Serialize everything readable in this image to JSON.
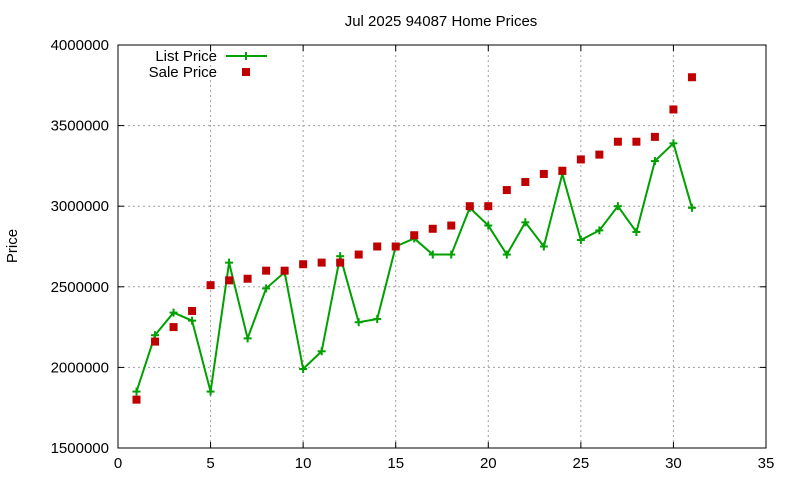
{
  "chart_data": {
    "type": "line",
    "title": "Jul 2025 94087 Home Prices",
    "xlabel": "",
    "ylabel": "Price",
    "xlim": [
      0,
      35
    ],
    "ylim": [
      1500000,
      4000000
    ],
    "xticks": [
      0,
      5,
      10,
      15,
      20,
      25,
      30,
      35
    ],
    "yticks": [
      1500000,
      2000000,
      2500000,
      3000000,
      3500000,
      4000000
    ],
    "grid": true,
    "legend_position": "top-left",
    "series": [
      {
        "name": "List Price",
        "style": "line+cross",
        "color": "#00a000",
        "x": [
          1,
          2,
          3,
          4,
          5,
          6,
          7,
          8,
          9,
          10,
          11,
          12,
          13,
          14,
          15,
          16,
          17,
          18,
          19,
          20,
          21,
          22,
          23,
          24,
          25,
          26,
          27,
          28,
          29,
          30,
          31
        ],
        "y": [
          1850000,
          2200000,
          2340000,
          2290000,
          1850000,
          2650000,
          2180000,
          2490000,
          2590000,
          1990000,
          2100000,
          2690000,
          2280000,
          2300000,
          2750000,
          2800000,
          2700000,
          2700000,
          2990000,
          2880000,
          2700000,
          2900000,
          2750000,
          3200000,
          2790000,
          2850000,
          3000000,
          2840000,
          3280000,
          3390000,
          2990000
        ]
      },
      {
        "name": "Sale Price",
        "style": "square",
        "color": "#c00000",
        "x": [
          1,
          2,
          3,
          4,
          5,
          6,
          7,
          8,
          9,
          10,
          11,
          12,
          13,
          14,
          15,
          16,
          17,
          18,
          19,
          20,
          21,
          22,
          23,
          24,
          25,
          26,
          27,
          28,
          29,
          30,
          31
        ],
        "y": [
          1800000,
          2160000,
          2250000,
          2350000,
          2510000,
          2540000,
          2550000,
          2600000,
          2600000,
          2640000,
          2650000,
          2650000,
          2700000,
          2750000,
          2750000,
          2820000,
          2860000,
          2880000,
          3000000,
          3000000,
          3100000,
          3150000,
          3200000,
          3220000,
          3290000,
          3320000,
          3400000,
          3400000,
          3430000,
          3600000,
          3800000
        ]
      }
    ]
  }
}
